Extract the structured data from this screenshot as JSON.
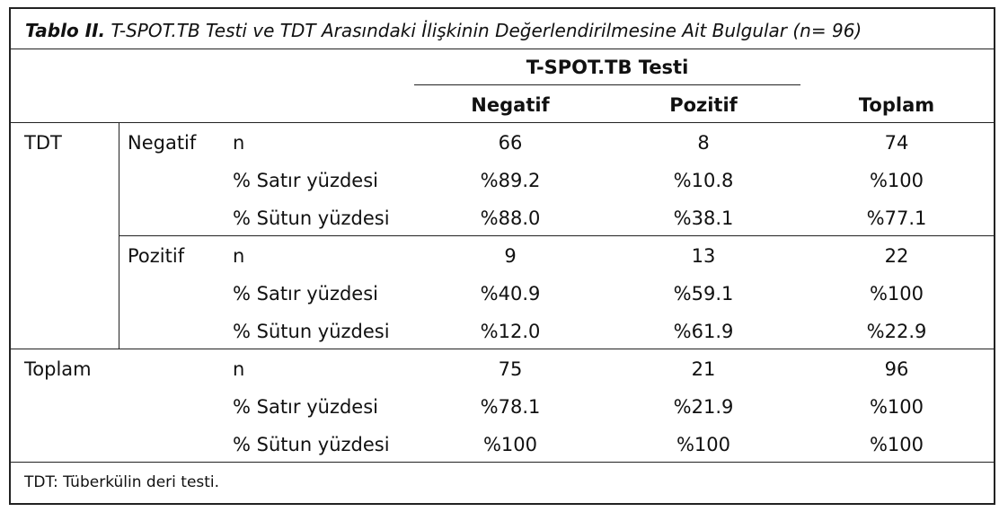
{
  "caption": {
    "label": "Tablo II.",
    "title": "T-SPOT.TB Testi ve TDT Arasındaki İlişkinin Değerlendirilmesine Ait Bulgular (n= 96)"
  },
  "header": {
    "group": "T-SPOT.TB Testi",
    "columns": [
      "Negatif",
      "Pozitif",
      "Toplam"
    ]
  },
  "rows": [
    {
      "group": "TDT",
      "sub": "Negatif",
      "metric": "n",
      "values": [
        "66",
        "8",
        "74"
      ]
    },
    {
      "metric": "% Satır yüzdesi",
      "values": [
        "%89.2",
        "%10.8",
        "%100"
      ]
    },
    {
      "metric": "% Sütun yüzdesi",
      "values": [
        "%88.0",
        "%38.1",
        "%77.1"
      ]
    },
    {
      "sub": "Pozitif",
      "metric": "n",
      "values": [
        "9",
        "13",
        "22"
      ]
    },
    {
      "metric": "% Satır yüzdesi",
      "values": [
        "%40.9",
        "%59.1",
        "%100"
      ]
    },
    {
      "metric": "% Sütun yüzdesi",
      "values": [
        "%12.0",
        "%61.9",
        "%22.9"
      ]
    },
    {
      "group": "Toplam",
      "metric": "n",
      "values": [
        "75",
        "21",
        "96"
      ]
    },
    {
      "metric": "% Satır yüzdesi",
      "values": [
        "%78.1",
        "%21.9",
        "%100"
      ]
    },
    {
      "metric": "% Sütun yüzdesi",
      "values": [
        "%100",
        "%100",
        "%100"
      ]
    }
  ],
  "footnote": "TDT: Tüberkülin deri testi."
}
